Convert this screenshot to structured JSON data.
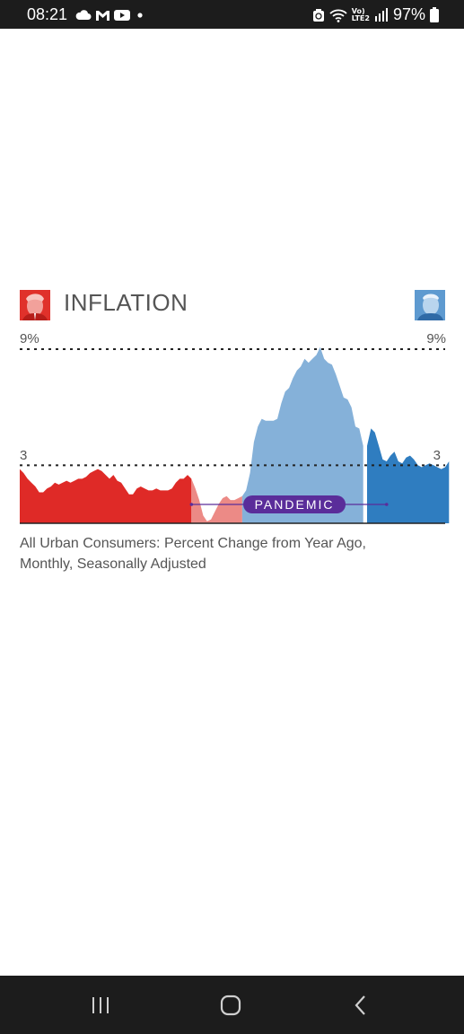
{
  "status_bar": {
    "time": "08:21",
    "battery": "97%",
    "net_label_top": "Vo)",
    "net_label_bottom": "LTE2",
    "icons": [
      "cloud-icon",
      "gmail-icon",
      "youtube-icon",
      "dot-icon",
      "recycle-icon",
      "wifi-icon",
      "signal-icon",
      "battery-icon"
    ]
  },
  "chart_data": {
    "type": "area",
    "title": "INFLATION",
    "y_tick_labels": {
      "left_top": "9%",
      "right_top": "9%",
      "left_mid": "3",
      "right_mid": "3"
    },
    "reference_lines": [
      9,
      3
    ],
    "ylim": [
      0,
      9
    ],
    "caption": "All Urban Consumers: Percent Change from Year Ago, Monthly, Seasonally Adjusted",
    "annotation": {
      "label": "PANDEMIC",
      "start_index": 44,
      "end_index": 94
    },
    "colors": {
      "trump_pre": "#df2a27",
      "trump_pandemic": "#ec8a86",
      "biden_pandemic": "#85b1d9",
      "biden_post": "#2f7dc0",
      "pandemic": "#5a2d9a"
    },
    "series": [
      {
        "segment": "trump_pre",
        "start_index": 0,
        "values": [
          2.8,
          2.6,
          2.3,
          2.1,
          1.9,
          1.6,
          1.6,
          1.8,
          1.9,
          2.1,
          2.0,
          2.1,
          2.2,
          2.1,
          2.2,
          2.3,
          2.3,
          2.4,
          2.6,
          2.7,
          2.8,
          2.7,
          2.5,
          2.3,
          2.5,
          2.2,
          2.1,
          1.8,
          1.5,
          1.5,
          1.8,
          1.9,
          1.8,
          1.7,
          1.7,
          1.8,
          1.7,
          1.7,
          1.7,
          1.8,
          2.1,
          2.3,
          2.3,
          2.5,
          2.3
        ]
      },
      {
        "segment": "trump_pandemic",
        "start_index": 44,
        "values": [
          2.3,
          1.8,
          1.2,
          0.4,
          0.1,
          0.2,
          0.6,
          1.0,
          1.3,
          1.4,
          1.2,
          1.2,
          1.3,
          1.4
        ]
      },
      {
        "segment": "biden_pandemic",
        "start_index": 57,
        "values": [
          1.4,
          1.7,
          2.6,
          4.2,
          5.0,
          5.4,
          5.3,
          5.3,
          5.3,
          5.4,
          6.2,
          6.8,
          7.0,
          7.5,
          7.9,
          8.1,
          8.5,
          8.3,
          8.5,
          8.7,
          9.1,
          8.5,
          8.3,
          8.2,
          7.7,
          7.1,
          6.5,
          6.4,
          6.0,
          5.0,
          4.9,
          4.0
        ]
      },
      {
        "segment": "biden_post",
        "start_index": 89,
        "values": [
          4.0,
          4.9,
          4.7,
          4.0,
          3.3,
          3.2,
          3.5,
          3.7,
          3.2,
          3.1,
          3.4,
          3.5,
          3.3,
          3.0,
          2.9,
          3.0,
          3.1,
          3.0,
          2.9,
          2.8,
          2.9,
          3.2
        ]
      }
    ]
  }
}
